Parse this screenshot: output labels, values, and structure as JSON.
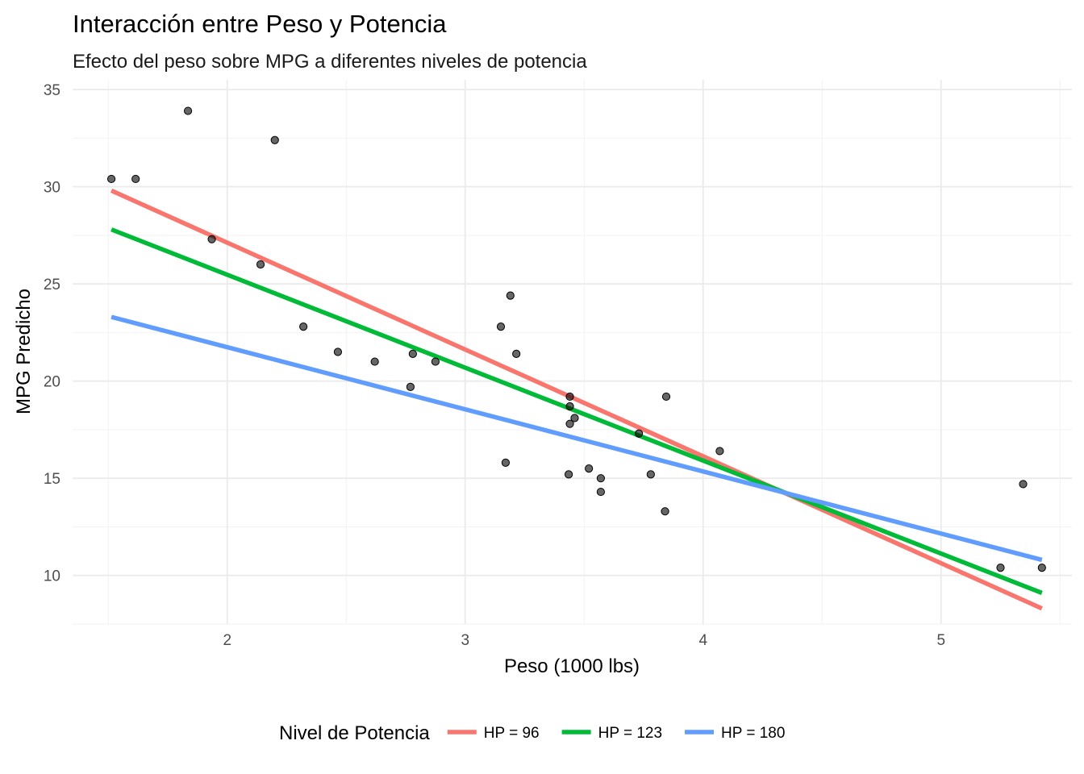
{
  "chart_data": {
    "type": "scatter",
    "title": "Interacción entre Peso y Potencia",
    "subtitle": "Efecto del peso sobre MPG a diferentes niveles de potencia",
    "xlabel": "Peso (1000 lbs)",
    "ylabel": "MPG Predicho",
    "xlim": [
      1.35,
      5.55
    ],
    "ylim": [
      7.5,
      35.5
    ],
    "x_ticks": [
      2,
      3,
      4,
      5
    ],
    "y_ticks": [
      10,
      15,
      20,
      25,
      30,
      35
    ],
    "x_tick_labels": [
      "2",
      "3",
      "4",
      "5"
    ],
    "y_tick_labels": [
      "10",
      "15",
      "20",
      "25",
      "30",
      "35"
    ],
    "grid": true,
    "legend": {
      "title": "Nivel de Potencia",
      "position": "bottom"
    },
    "points": [
      {
        "x": 2.62,
        "y": 21.0
      },
      {
        "x": 2.875,
        "y": 21.0
      },
      {
        "x": 2.32,
        "y": 22.8
      },
      {
        "x": 3.215,
        "y": 21.4
      },
      {
        "x": 3.44,
        "y": 18.7
      },
      {
        "x": 3.46,
        "y": 18.1
      },
      {
        "x": 3.57,
        "y": 14.3
      },
      {
        "x": 3.19,
        "y": 24.4
      },
      {
        "x": 3.15,
        "y": 22.8
      },
      {
        "x": 3.44,
        "y": 19.2
      },
      {
        "x": 3.44,
        "y": 17.8
      },
      {
        "x": 4.07,
        "y": 16.4
      },
      {
        "x": 3.73,
        "y": 17.3
      },
      {
        "x": 3.78,
        "y": 15.2
      },
      {
        "x": 5.25,
        "y": 10.4
      },
      {
        "x": 5.424,
        "y": 10.4
      },
      {
        "x": 5.345,
        "y": 14.7
      },
      {
        "x": 2.2,
        "y": 32.4
      },
      {
        "x": 1.615,
        "y": 30.4
      },
      {
        "x": 1.835,
        "y": 33.9
      },
      {
        "x": 2.465,
        "y": 21.5
      },
      {
        "x": 3.52,
        "y": 15.5
      },
      {
        "x": 3.435,
        "y": 15.2
      },
      {
        "x": 3.84,
        "y": 13.3
      },
      {
        "x": 3.845,
        "y": 19.2
      },
      {
        "x": 1.935,
        "y": 27.3
      },
      {
        "x": 2.14,
        "y": 26.0
      },
      {
        "x": 1.513,
        "y": 30.4
      },
      {
        "x": 3.17,
        "y": 15.8
      },
      {
        "x": 2.77,
        "y": 19.7
      },
      {
        "x": 3.57,
        "y": 15.0
      },
      {
        "x": 2.78,
        "y": 21.4
      }
    ],
    "series": [
      {
        "name": "HP = 96",
        "color": "#F8766D",
        "x": [
          1.513,
          5.424
        ],
        "y": [
          29.8,
          8.3
        ]
      },
      {
        "name": "HP = 123",
        "color": "#00BA38",
        "x": [
          1.513,
          5.424
        ],
        "y": [
          27.8,
          9.1
        ]
      },
      {
        "name": "HP = 180",
        "color": "#619CFF",
        "x": [
          1.513,
          5.424
        ],
        "y": [
          23.3,
          10.8
        ]
      }
    ]
  }
}
